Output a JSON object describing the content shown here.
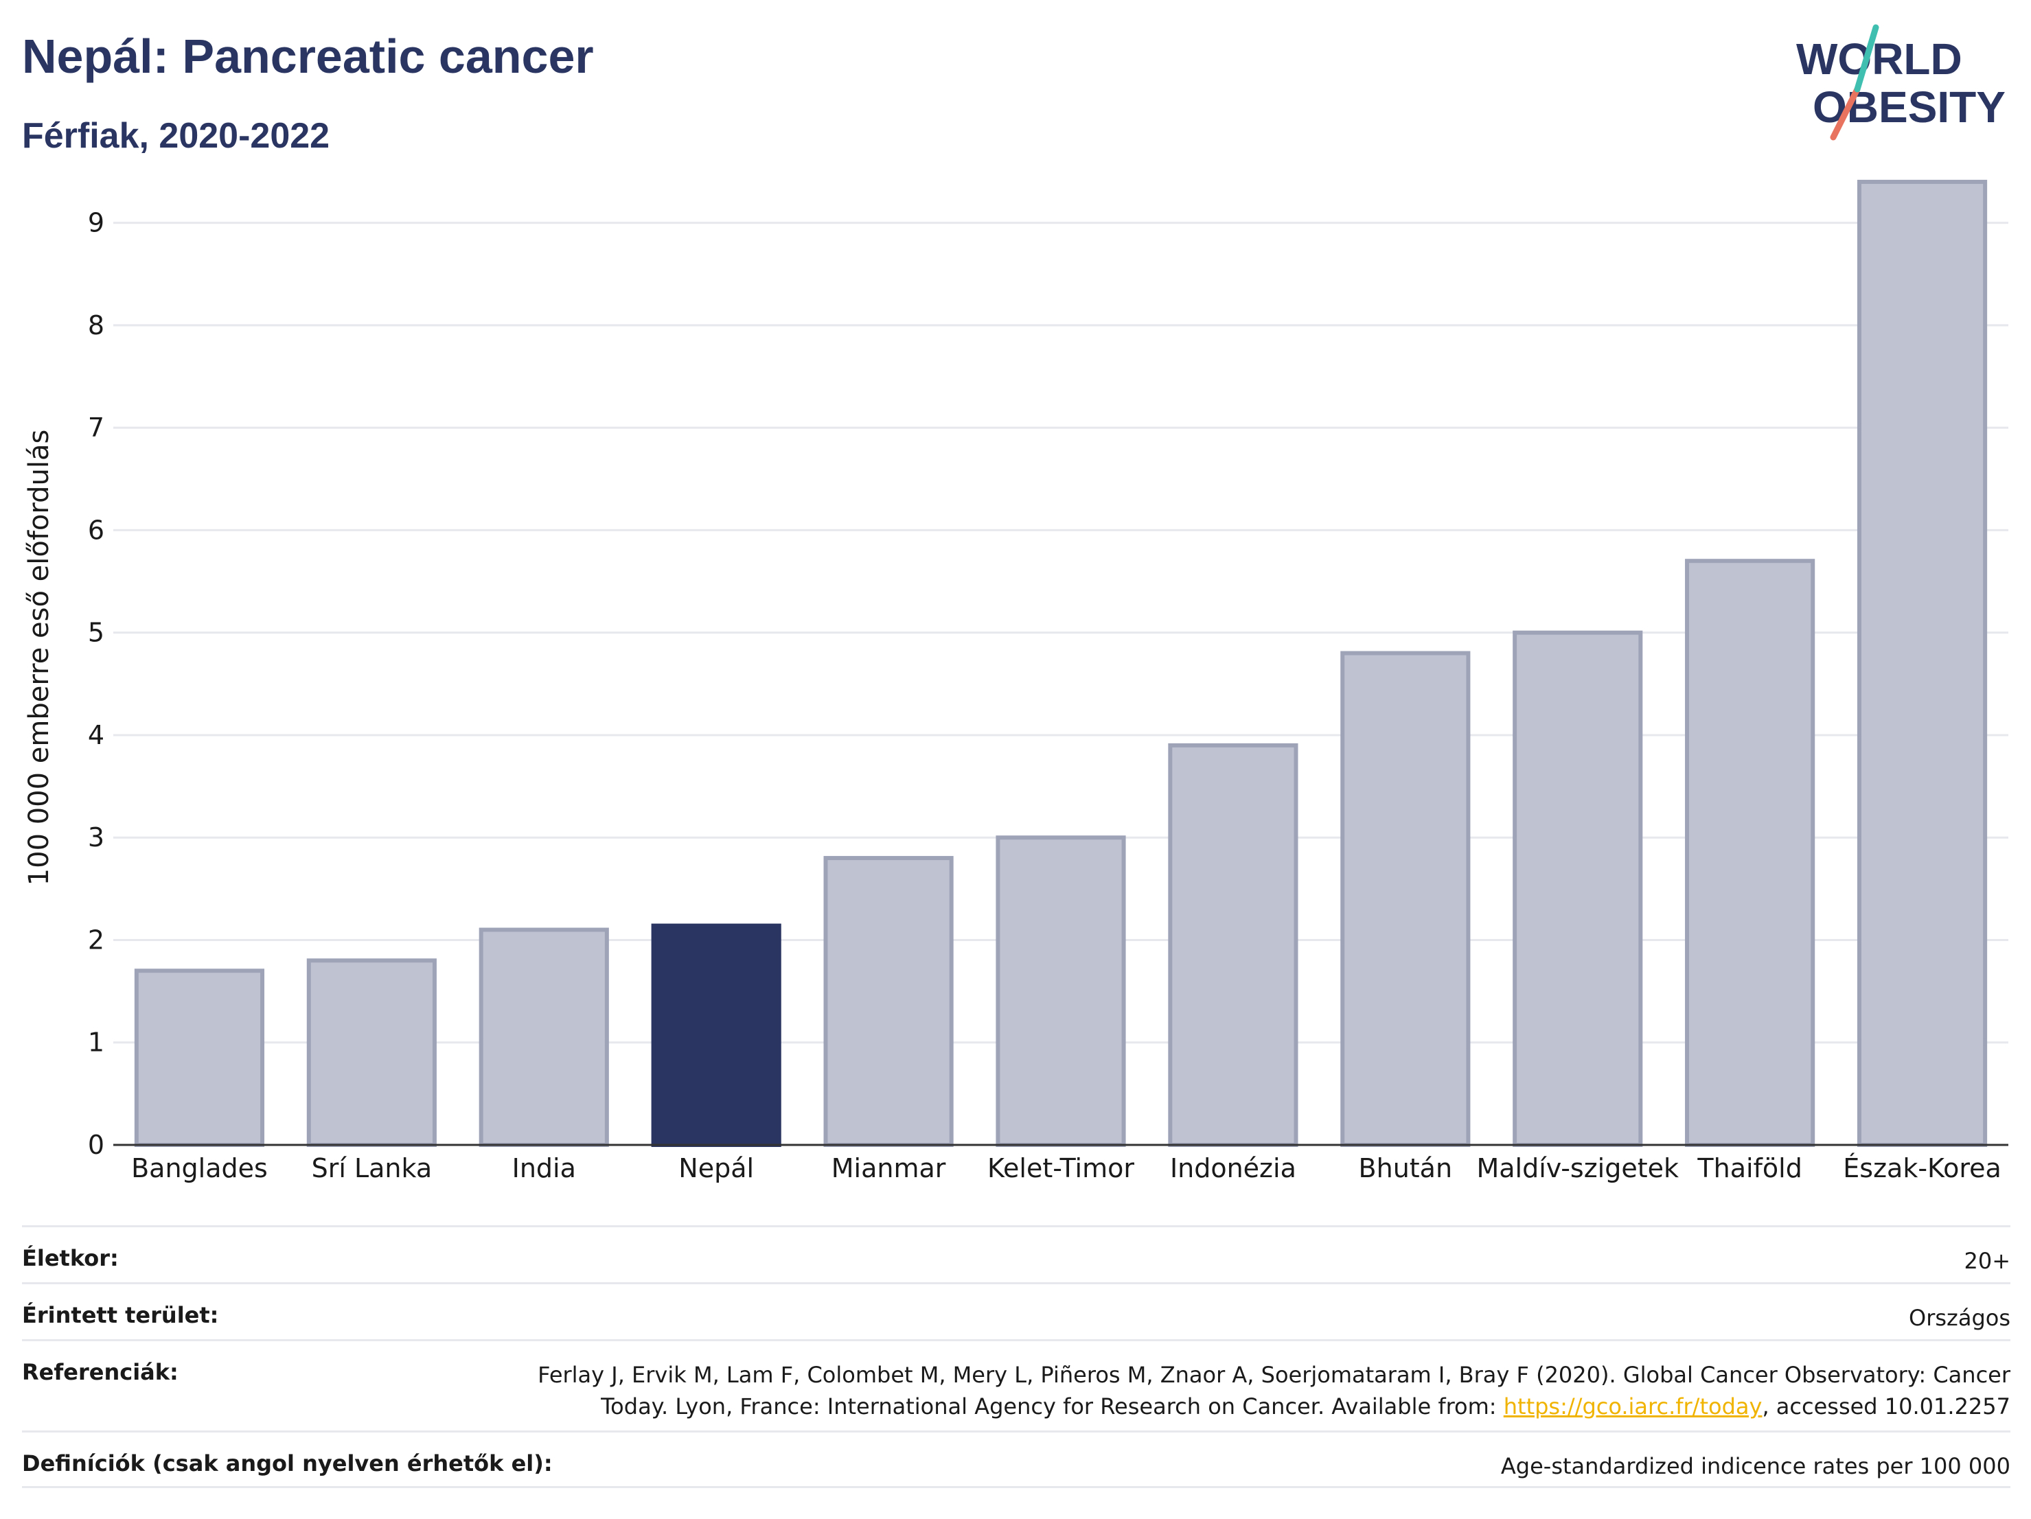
{
  "header": {
    "title": "Nepál: Pancreatic cancer",
    "subtitle": "Férfiak, 2020-2022"
  },
  "logo": {
    "line1": "WORLD",
    "line2": "OBESITY"
  },
  "chart_data": {
    "type": "bar",
    "title": "Nepál: Pancreatic cancer",
    "subtitle": "Férfiak, 2020-2022",
    "ylabel": "100 000 emberre eső előfordulás",
    "xlabel": "",
    "ylim": [
      0,
      9.5
    ],
    "yticks": [
      "0",
      "1",
      "2",
      "3",
      "4",
      "5",
      "6",
      "7",
      "8",
      "9"
    ],
    "grid": true,
    "highlight": "Nepál",
    "colors": {
      "highlight": "#2a3561",
      "bar": "#bfc3d1",
      "bar_edge": "#9ea3b8",
      "grid": "#e6e8ee"
    },
    "categories": [
      "Banglades",
      "Srí Lanka",
      "India",
      "Nepál",
      "Mianmar",
      "Kelet-Timor",
      "Indonézia",
      "Bhután",
      "Maldív-szigetek",
      "Thaiföld",
      "Észak-Korea"
    ],
    "values": [
      1.7,
      1.8,
      2.1,
      2.14,
      2.8,
      3.0,
      3.9,
      4.8,
      5.0,
      5.7,
      9.4
    ]
  },
  "info": {
    "age_label": "Életkor:",
    "age_value": "20+",
    "area_label": "Érintett terület:",
    "area_value": "Országos",
    "ref_label": "Referenciák:",
    "ref_text_1": "Ferlay J, Ervik M, Lam F, Colombet M, Mery L, Piñeros M, Znaor A, Soerjomataram I, Bray F (2020). Global Cancer Observatory: Cancer",
    "ref_text_2": "Today. Lyon, France: International Agency for Research on Cancer. Available from: ",
    "ref_link": "https://gco.iarc.fr/today",
    "ref_text_3": ", accessed 10.01.2257",
    "def_label": "Definíciók (csak angol nyelven érhetők el):",
    "def_value": "Age-standardized indicence rates per 100 000"
  }
}
